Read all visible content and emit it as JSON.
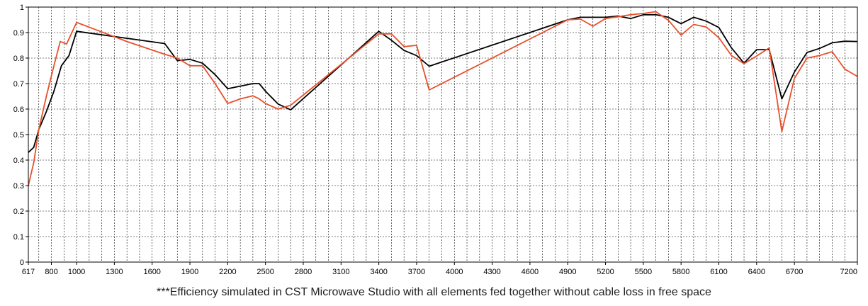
{
  "caption": "***Efficiency simulated in CST Microwave Studio with all elements fed together without cable loss in free space",
  "chart_data": {
    "type": "line",
    "title": "",
    "xlabel": "",
    "ylabel": "",
    "xlim": [
      617,
      7200
    ],
    "ylim": [
      0,
      1
    ],
    "grid": true,
    "x_tick_labels": [
      "617",
      "800",
      "1000",
      "1300",
      "1600",
      "1900",
      "2200",
      "2500",
      "2800",
      "3100",
      "3400",
      "3700",
      "4000",
      "4300",
      "4600",
      "4900",
      "5200",
      "5500",
      "5800",
      "6100",
      "6400",
      "6700",
      "7200"
    ],
    "y_tick_labels": [
      "0",
      "0.1",
      "0.2",
      "0.3",
      "0.4",
      "0.5",
      "0.6",
      "0.7",
      "0.8",
      "0.9",
      "1"
    ],
    "series": [
      {
        "color": "#000000",
        "points": [
          [
            617,
            0.43
          ],
          [
            660,
            0.45
          ],
          [
            700,
            0.52
          ],
          [
            760,
            0.59
          ],
          [
            820,
            0.67
          ],
          [
            880,
            0.77
          ],
          [
            940,
            0.81
          ],
          [
            1000,
            0.905
          ],
          [
            1700,
            0.857
          ],
          [
            1800,
            0.79
          ],
          [
            1900,
            0.795
          ],
          [
            2000,
            0.78
          ],
          [
            2100,
            0.735
          ],
          [
            2200,
            0.68
          ],
          [
            2300,
            0.69
          ],
          [
            2400,
            0.7
          ],
          [
            2450,
            0.7
          ],
          [
            2500,
            0.67
          ],
          [
            2600,
            0.62
          ],
          [
            2700,
            0.597
          ],
          [
            3400,
            0.905
          ],
          [
            3500,
            0.87
          ],
          [
            3600,
            0.83
          ],
          [
            3700,
            0.81
          ],
          [
            3800,
            0.768
          ],
          [
            4900,
            0.95
          ],
          [
            5000,
            0.96
          ],
          [
            5100,
            0.96
          ],
          [
            5200,
            0.96
          ],
          [
            5300,
            0.965
          ],
          [
            5400,
            0.955
          ],
          [
            5500,
            0.97
          ],
          [
            5600,
            0.97
          ],
          [
            5700,
            0.96
          ],
          [
            5800,
            0.935
          ],
          [
            5900,
            0.96
          ],
          [
            6000,
            0.945
          ],
          [
            6100,
            0.92
          ],
          [
            6200,
            0.84
          ],
          [
            6300,
            0.78
          ],
          [
            6400,
            0.833
          ],
          [
            6500,
            0.833
          ],
          [
            6600,
            0.64
          ],
          [
            6700,
            0.745
          ],
          [
            6800,
            0.822
          ],
          [
            6900,
            0.838
          ],
          [
            7000,
            0.86
          ],
          [
            7100,
            0.866
          ],
          [
            7200,
            0.865
          ]
        ]
      },
      {
        "color": "#e8502c",
        "points": [
          [
            617,
            0.3
          ],
          [
            660,
            0.39
          ],
          [
            700,
            0.52
          ],
          [
            760,
            0.65
          ],
          [
            820,
            0.77
          ],
          [
            870,
            0.865
          ],
          [
            920,
            0.855
          ],
          [
            1000,
            0.94
          ],
          [
            1400,
            0.865
          ],
          [
            1700,
            0.815
          ],
          [
            1800,
            0.8
          ],
          [
            1900,
            0.77
          ],
          [
            2000,
            0.77
          ],
          [
            2100,
            0.7
          ],
          [
            2200,
            0.622
          ],
          [
            2300,
            0.64
          ],
          [
            2400,
            0.652
          ],
          [
            2450,
            0.64
          ],
          [
            2500,
            0.622
          ],
          [
            2600,
            0.6
          ],
          [
            2700,
            0.615
          ],
          [
            3400,
            0.895
          ],
          [
            3500,
            0.895
          ],
          [
            3600,
            0.845
          ],
          [
            3700,
            0.85
          ],
          [
            3800,
            0.675
          ],
          [
            4900,
            0.95
          ],
          [
            5000,
            0.953
          ],
          [
            5100,
            0.925
          ],
          [
            5200,
            0.955
          ],
          [
            5300,
            0.962
          ],
          [
            5400,
            0.97
          ],
          [
            5500,
            0.975
          ],
          [
            5600,
            0.982
          ],
          [
            5700,
            0.948
          ],
          [
            5800,
            0.89
          ],
          [
            5900,
            0.932
          ],
          [
            6000,
            0.922
          ],
          [
            6100,
            0.88
          ],
          [
            6200,
            0.81
          ],
          [
            6300,
            0.778
          ],
          [
            6400,
            0.808
          ],
          [
            6500,
            0.84
          ],
          [
            6600,
            0.512
          ],
          [
            6700,
            0.72
          ],
          [
            6800,
            0.8
          ],
          [
            6900,
            0.81
          ],
          [
            7000,
            0.825
          ],
          [
            7100,
            0.757
          ],
          [
            7200,
            0.728
          ]
        ]
      }
    ]
  }
}
